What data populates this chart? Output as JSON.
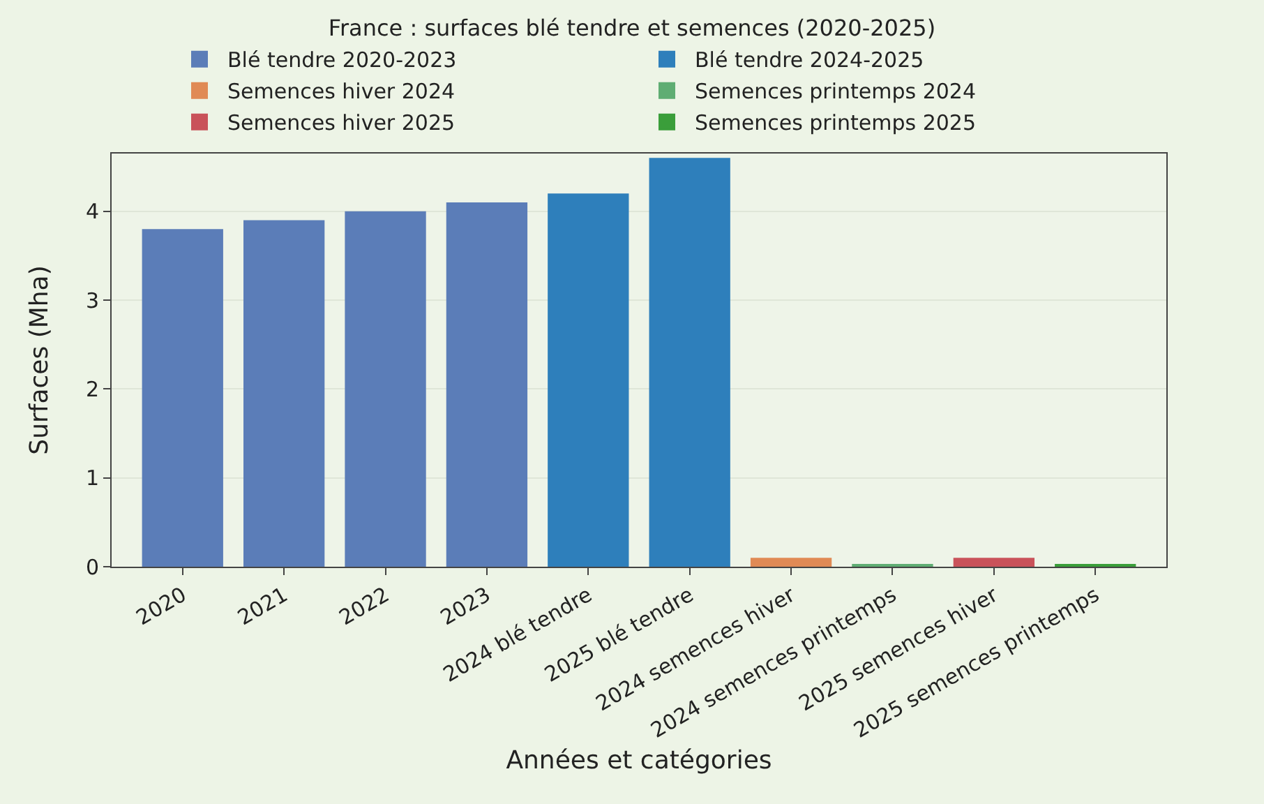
{
  "chart_data": {
    "type": "bar",
    "title": "France : surfaces blé tendre et semences (2020-2025)",
    "xlabel": "Années et catégories",
    "ylabel": "Surfaces (Mha)",
    "categories": [
      "2020",
      "2021",
      "2022",
      "2023",
      "2024 blé tendre",
      "2025 blé tendre",
      "2024 semences hiver",
      "2024 semences printemps",
      "2025 semences hiver",
      "2025 semences printemps"
    ],
    "series": [
      {
        "name": "Blé tendre 2020-2023",
        "color": "#5b7db8",
        "values": [
          3.8,
          3.9,
          4.0,
          4.1,
          null,
          null,
          null,
          null,
          null,
          null
        ]
      },
      {
        "name": "Blé tendre 2024-2025",
        "color": "#2e7fbb",
        "values": [
          null,
          null,
          null,
          null,
          4.2,
          4.6,
          null,
          null,
          null,
          null
        ]
      },
      {
        "name": "Semences hiver 2024",
        "color": "#e08a55",
        "values": [
          null,
          null,
          null,
          null,
          null,
          null,
          0.1,
          null,
          null,
          null
        ]
      },
      {
        "name": "Semences printemps 2024",
        "color": "#5fad73",
        "values": [
          null,
          null,
          null,
          null,
          null,
          null,
          null,
          0.02,
          null,
          null
        ]
      },
      {
        "name": "Semences hiver 2025",
        "color": "#c9525a",
        "values": [
          null,
          null,
          null,
          null,
          null,
          null,
          null,
          null,
          0.1,
          null
        ]
      },
      {
        "name": "Semences printemps 2025",
        "color": "#3a9e3a",
        "values": [
          null,
          null,
          null,
          null,
          null,
          null,
          null,
          null,
          null,
          0.02
        ]
      }
    ],
    "ylim": [
      0,
      4.65
    ],
    "yticks": [
      0,
      1,
      2,
      3,
      4
    ],
    "grid": "y",
    "legend": "top"
  }
}
